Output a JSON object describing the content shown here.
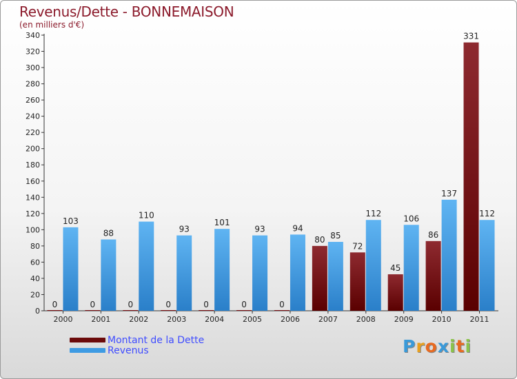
{
  "header": {
    "title": "Revenus/Dette - BONNEMAISON",
    "subtitle": "(en milliers d'€)"
  },
  "chart_data": {
    "type": "bar",
    "title": "Revenus/Dette - BONNEMAISON",
    "ylabel": "(en milliers d'€)",
    "xlabel": "",
    "ylim": [
      0,
      340
    ],
    "ytick_step": 20,
    "grid": false,
    "categories": [
      "2000",
      "2001",
      "2002",
      "2003",
      "2004",
      "2005",
      "2006",
      "2007",
      "2008",
      "2009",
      "2010",
      "2011"
    ],
    "series": [
      {
        "name": "Montant de la Dette",
        "color": "#7a0e12",
        "values": [
          0,
          0,
          0,
          0,
          0,
          0,
          0,
          80,
          72,
          45,
          86,
          331
        ]
      },
      {
        "name": "Revenus",
        "color": "#3e9be3",
        "values": [
          103,
          88,
          110,
          93,
          101,
          93,
          94,
          85,
          112,
          106,
          137,
          112
        ]
      }
    ],
    "legend_position": "bottom-left"
  },
  "legend": {
    "items": [
      {
        "label": "Montant de la Dette",
        "color": "#6b0a0a"
      },
      {
        "label": "Revenus",
        "color": "#3e9be3"
      }
    ]
  },
  "logo": {
    "letters": [
      "P",
      "r",
      "o",
      "x",
      "i",
      "t",
      "i"
    ],
    "colors": [
      "#3a9ad9",
      "#e8a020",
      "#e86a20",
      "#3a9ad9",
      "#8bc34a",
      "#e86a20",
      "#8bc34a"
    ]
  }
}
